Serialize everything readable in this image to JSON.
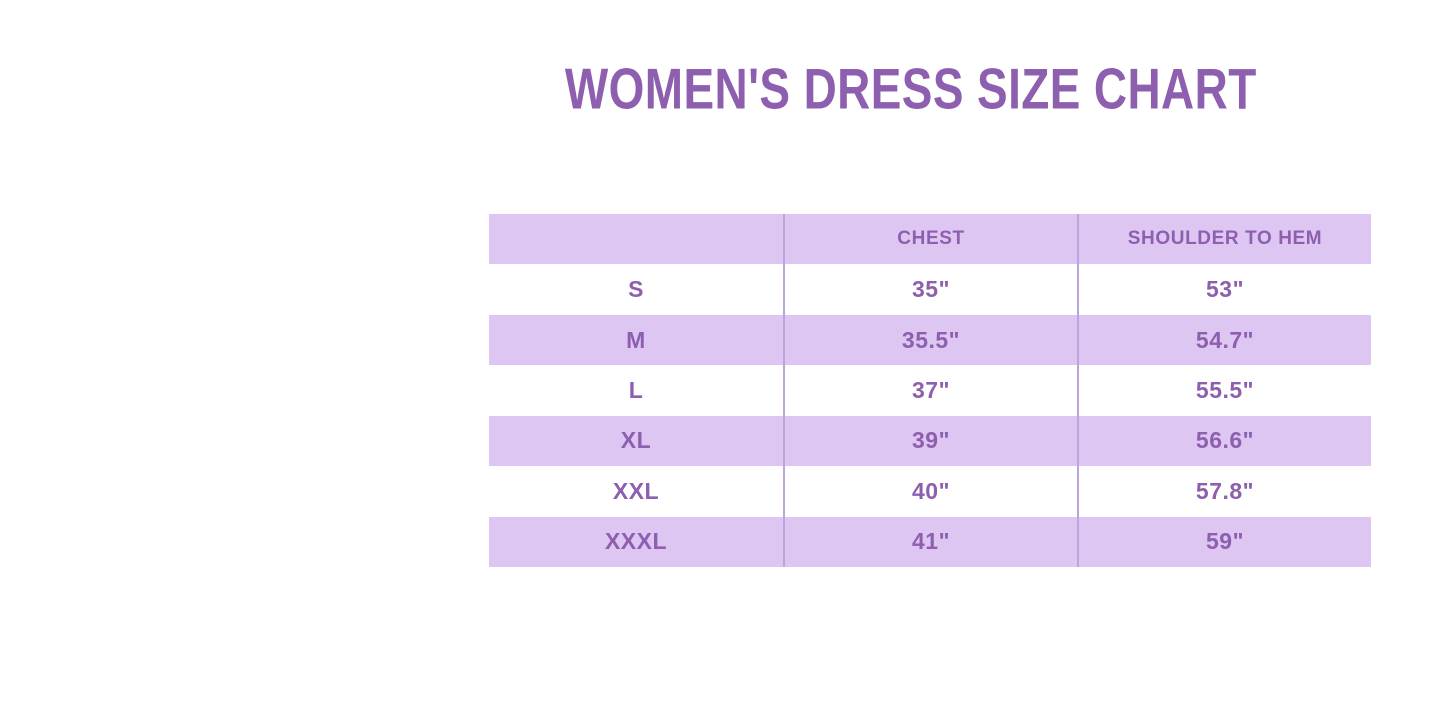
{
  "page": {
    "title": "WOMEN'S DRESS SIZE CHART"
  },
  "colors": {
    "text_purple": "#8d5fae",
    "row_fill_lavender": "#ddc6f2",
    "column_divider": "#bfa4dc",
    "background": "#ffffff"
  },
  "chart_data": {
    "type": "table",
    "title": "WOMEN'S DRESS SIZE CHART",
    "columns": [
      "",
      "CHEST",
      "SHOULDER TO HEM"
    ],
    "rows": [
      [
        "S",
        "35\"",
        "53\""
      ],
      [
        "M",
        "35.5\"",
        "54.7\""
      ],
      [
        "L",
        "37\"",
        "55.5\""
      ],
      [
        "XL",
        "39\"",
        "56.6\""
      ],
      [
        "XXL",
        "40\"",
        "57.8\""
      ],
      [
        "XXXL",
        "41\"",
        "59\""
      ]
    ],
    "layout": {
      "striped_rows": "header and even data rows lavender, others white",
      "legend": "none",
      "grid": "vertical column dividers only"
    }
  }
}
